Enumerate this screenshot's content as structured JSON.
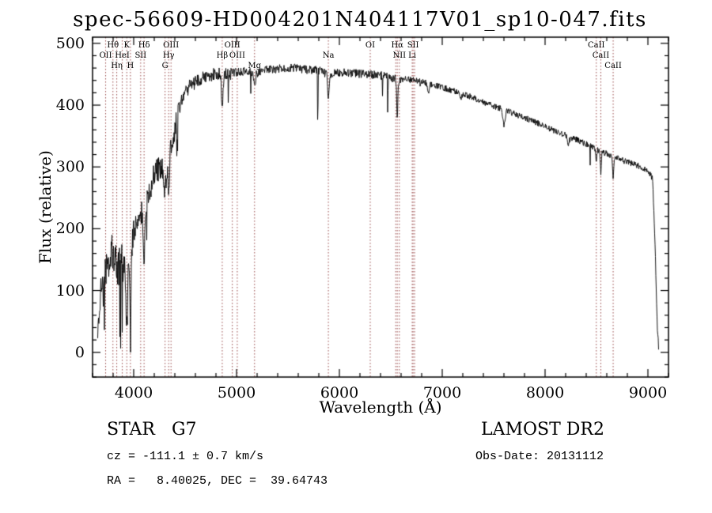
{
  "chart_data": {
    "type": "line",
    "title": "spec-56609-HD004201N404117V01_sp10-047.fits",
    "xlabel": "Wavelength (Å)",
    "ylabel": "Flux (relative)",
    "xlim": [
      3600,
      9200
    ],
    "ylim": [
      -40,
      510
    ],
    "x_ticks": [
      4000,
      5000,
      6000,
      7000,
      8000,
      9000
    ],
    "y_ticks": [
      0,
      100,
      200,
      300,
      400,
      500
    ],
    "x_minor_step": 200,
    "y_minor_step": 20,
    "line_color": "#000000",
    "marker_color": "#9a4a4a",
    "continuum": [
      [
        3650,
        40
      ],
      [
        3680,
        90
      ],
      [
        3700,
        115
      ],
      [
        3730,
        140
      ],
      [
        3760,
        150
      ],
      [
        3790,
        165
      ],
      [
        3820,
        150
      ],
      [
        3850,
        135
      ],
      [
        3880,
        150
      ],
      [
        3910,
        150
      ],
      [
        3950,
        140
      ],
      [
        4000,
        195
      ],
      [
        4050,
        225
      ],
      [
        4100,
        230
      ],
      [
        4150,
        260
      ],
      [
        4200,
        290
      ],
      [
        4250,
        300
      ],
      [
        4300,
        305
      ],
      [
        4360,
        330
      ],
      [
        4420,
        380
      ],
      [
        4480,
        415
      ],
      [
        4540,
        430
      ],
      [
        4600,
        437
      ],
      [
        4700,
        446
      ],
      [
        4800,
        452
      ],
      [
        4900,
        450
      ],
      [
        5000,
        453
      ],
      [
        5100,
        456
      ],
      [
        5200,
        452
      ],
      [
        5300,
        457
      ],
      [
        5400,
        459
      ],
      [
        5500,
        461
      ],
      [
        5600,
        459
      ],
      [
        5700,
        457
      ],
      [
        5800,
        456
      ],
      [
        5900,
        449
      ],
      [
        6000,
        453
      ],
      [
        6100,
        452
      ],
      [
        6250,
        450
      ],
      [
        6400,
        448
      ],
      [
        6550,
        443
      ],
      [
        6700,
        441
      ],
      [
        6850,
        436
      ],
      [
        7000,
        429
      ],
      [
        7150,
        421
      ],
      [
        7300,
        412
      ],
      [
        7450,
        402
      ],
      [
        7600,
        392
      ],
      [
        7750,
        383
      ],
      [
        7900,
        373
      ],
      [
        8050,
        362
      ],
      [
        8200,
        351
      ],
      [
        8350,
        341
      ],
      [
        8500,
        329
      ],
      [
        8650,
        317
      ],
      [
        8800,
        308
      ],
      [
        8950,
        299
      ],
      [
        9000,
        293
      ],
      [
        9045,
        282
      ],
      [
        9070,
        170
      ],
      [
        9090,
        45
      ],
      [
        9105,
        5
      ]
    ],
    "absorption_lines": [
      {
        "wl": 3933,
        "sigma": 7,
        "depth": 115
      },
      {
        "wl": 3968,
        "sigma": 7,
        "depth": 100
      },
      {
        "wl": 4101,
        "sigma": 7,
        "depth": 70
      },
      {
        "wl": 4305,
        "sigma": 11,
        "depth": 45
      },
      {
        "wl": 4340,
        "sigma": 7,
        "depth": 60
      },
      {
        "wl": 4861,
        "sigma": 7,
        "depth": 55
      },
      {
        "wl": 5175,
        "sigma": 9,
        "depth": 22
      },
      {
        "wl": 5893,
        "sigma": 7,
        "depth": 35
      },
      {
        "wl": 6563,
        "sigma": 6,
        "depth": 60
      },
      {
        "wl": 6867,
        "sigma": 8,
        "depth": 14
      },
      {
        "wl": 7180,
        "sigma": 9,
        "depth": 10
      },
      {
        "wl": 7600,
        "sigma": 10,
        "depth": 26
      },
      {
        "wl": 8227,
        "sigma": 9,
        "depth": 12
      },
      {
        "wl": 8498,
        "sigma": 5,
        "depth": 24
      },
      {
        "wl": 8542,
        "sigma": 5,
        "depth": 34
      },
      {
        "wl": 8662,
        "sigma": 5,
        "depth": 34
      }
    ],
    "narrow_spikes": [
      {
        "wl": 4420,
        "sigma": 2,
        "depth": 85
      },
      {
        "wl": 4920,
        "sigma": 2,
        "depth": 45
      },
      {
        "wl": 5790,
        "sigma": 2,
        "depth": 105
      },
      {
        "wl": 6470,
        "sigma": 2,
        "depth": 55
      }
    ],
    "noise_segments": [
      {
        "from": 3640,
        "to": 3950,
        "amp": 30,
        "spike_prob": 0.1,
        "spike_depth": 130
      },
      {
        "from": 3950,
        "to": 4450,
        "amp": 20,
        "spike_prob": 0.05,
        "spike_depth": 90
      },
      {
        "from": 4450,
        "to": 4950,
        "amp": 11,
        "spike_prob": 0.02,
        "spike_depth": 45
      },
      {
        "from": 4950,
        "to": 6600,
        "amp": 7,
        "spike_prob": 0.008,
        "spike_depth": 45
      },
      {
        "from": 6600,
        "to": 8200,
        "amp": 5,
        "spike_prob": 0.004,
        "spike_depth": 22
      },
      {
        "from": 8200,
        "to": 9110,
        "amp": 5,
        "spike_prob": 0.02,
        "spike_depth": 30
      }
    ],
    "markers": [
      {
        "wl": 3727,
        "label": "OII",
        "row": 1
      },
      {
        "wl": 3798,
        "label": "Hθ",
        "row": 0
      },
      {
        "wl": 3835,
        "label": "Hη",
        "row": 2
      },
      {
        "wl": 3889,
        "label": "HeI",
        "row": 1
      },
      {
        "wl": 3933,
        "label": "K",
        "row": 0
      },
      {
        "wl": 3968,
        "label": "H",
        "row": 2
      },
      {
        "wl": 4068,
        "label": "SII",
        "row": 1
      },
      {
        "wl": 4101,
        "label": "Hδ",
        "row": 0
      },
      {
        "wl": 4305,
        "label": "G",
        "row": 2
      },
      {
        "wl": 4340,
        "label": "Hγ",
        "row": 1
      },
      {
        "wl": 4363,
        "label": "OIII",
        "row": 0
      },
      {
        "wl": 4861,
        "label": "Hβ",
        "row": 1
      },
      {
        "wl": 4959,
        "label": "OIII",
        "row": 0
      },
      {
        "wl": 5007,
        "label": "OIII",
        "row": 1
      },
      {
        "wl": 5175,
        "label": "Mg",
        "row": 2
      },
      {
        "wl": 5893,
        "label": "Na",
        "row": 1
      },
      {
        "wl": 6300,
        "label": "OI",
        "row": 0
      },
      {
        "wl": 6548,
        "label": "",
        "row": 1
      },
      {
        "wl": 6563,
        "label": "Hα",
        "row": 0
      },
      {
        "wl": 6583,
        "label": "NII",
        "row": 1
      },
      {
        "wl": 6708,
        "label": "Li",
        "row": 1
      },
      {
        "wl": 6716,
        "label": "SII",
        "row": 0
      },
      {
        "wl": 6731,
        "label": "",
        "row": 0
      },
      {
        "wl": 8498,
        "label": "CaII",
        "row": 0
      },
      {
        "wl": 8542,
        "label": "CaII",
        "row": 1
      },
      {
        "wl": 8662,
        "label": "CaII",
        "row": 2
      }
    ]
  },
  "annotations": {
    "class_line": "STAR   G7",
    "survey": "LAMOST DR2",
    "cz": "cz = -111.1 ± 0.7 km/s",
    "obs_date": "Obs-Date: 20131112",
    "radec": "RA =   8.40025, DEC =  39.64743"
  }
}
